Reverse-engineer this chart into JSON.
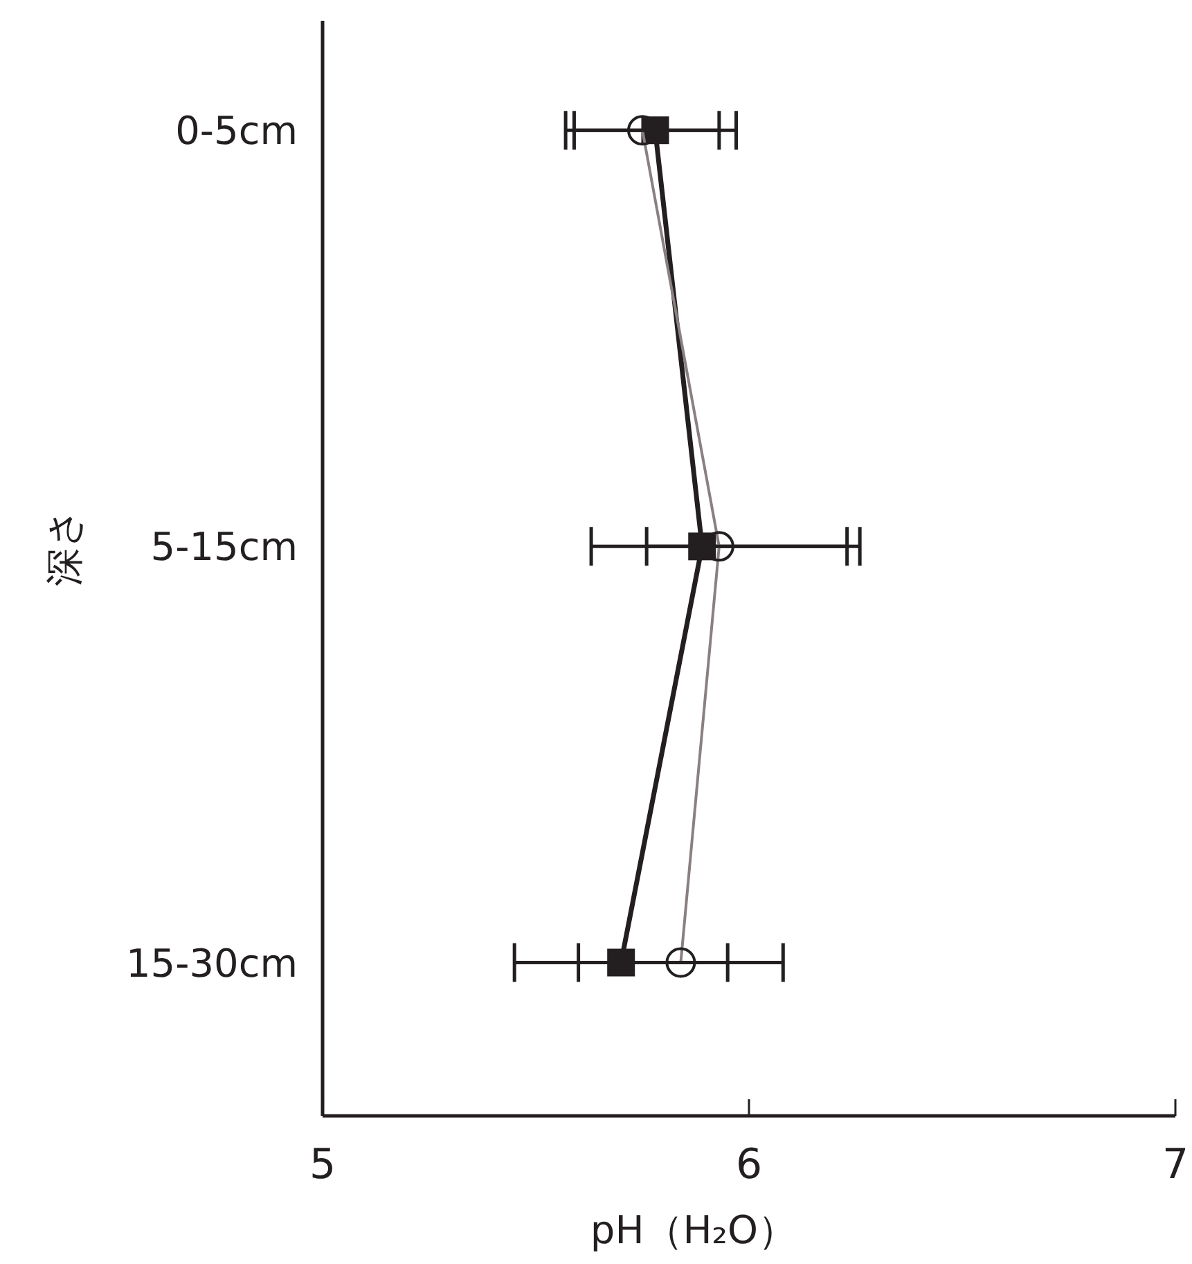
{
  "chart_data": {
    "type": "line",
    "orientation": "horizontal",
    "categories": [
      "0-5cm",
      "5-15cm",
      "15-30cm"
    ],
    "xlabel": "pH（H₂O）",
    "ylabel": "深さ",
    "xlim": [
      5,
      7
    ],
    "xticks": [
      5,
      6,
      7
    ],
    "grid": false,
    "series": [
      {
        "color": "#231f20",
        "marker": "square",
        "values": [
          5.78,
          5.89,
          5.7
        ],
        "errors": [
          0.19,
          [
            5.76,
            6.26
          ],
          0.25
        ]
      },
      {
        "color": "#8a8080",
        "marker": "circle",
        "values": [
          5.75,
          5.93,
          5.84
        ],
        "errors": [
          0.18,
          0.3,
          0.24
        ]
      }
    ]
  }
}
